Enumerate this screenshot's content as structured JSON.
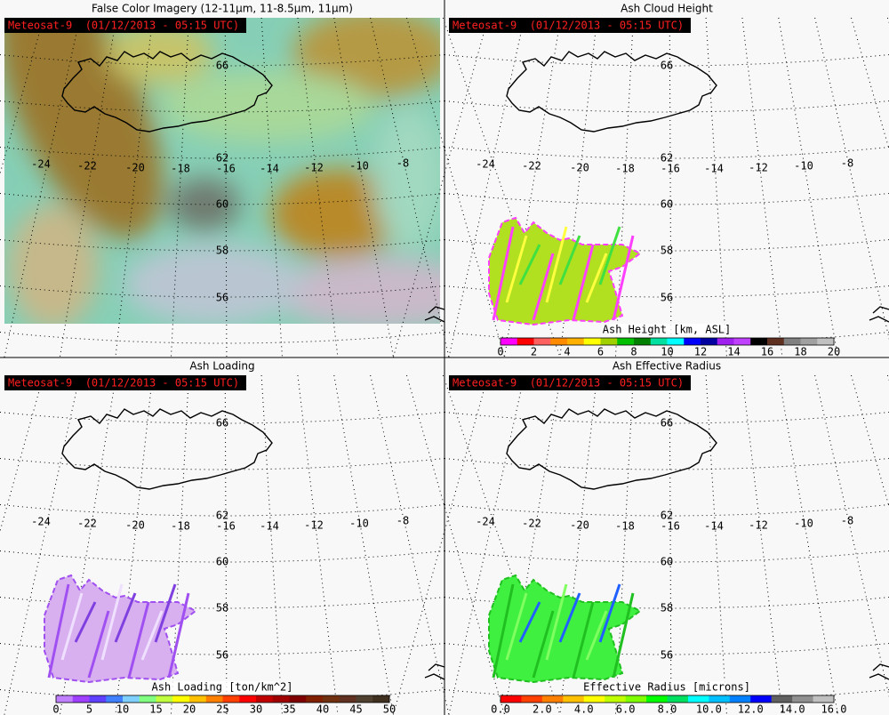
{
  "panels": [
    {
      "title": "False Color Imagery (12-11μm, 11-8.5μm, 11μm)",
      "badge": "Meteosat-9  (01/12/2013 - 05:15 UTC)",
      "lat_labels": [
        "66",
        "62",
        "60",
        "58",
        "56"
      ],
      "lon_labels": [
        "-24",
        "-22",
        "-20",
        "-18",
        "-16",
        "-14",
        "-12",
        "-10",
        "-8"
      ]
    },
    {
      "title": "Ash Cloud Height",
      "badge": "Meteosat-9  (01/12/2013 - 05:15 UTC)",
      "lat_labels": [
        "66",
        "62",
        "60",
        "58",
        "56"
      ],
      "lon_labels": [
        "-24",
        "-22",
        "-20",
        "-18",
        "-16",
        "-14",
        "-12",
        "-10",
        "-8"
      ],
      "colorbar": {
        "label": "Ash Height [km, ASL]",
        "ticks": [
          "0",
          "2",
          "4",
          "6",
          "8",
          "10",
          "12",
          "14",
          "16",
          "18",
          "20"
        ]
      }
    },
    {
      "title": "Ash Loading",
      "badge": "Meteosat-9  (01/12/2013 - 05:15 UTC)",
      "lat_labels": [
        "66",
        "62",
        "60",
        "58",
        "56"
      ],
      "lon_labels": [
        "-24",
        "-22",
        "-20",
        "-18",
        "-16",
        "-14",
        "-12",
        "-10",
        "-8"
      ],
      "colorbar": {
        "label": "Ash Loading [ton/km^2]",
        "ticks": [
          "0",
          "5",
          "10",
          "15",
          "20",
          "25",
          "30",
          "35",
          "40",
          "45",
          "50"
        ]
      }
    },
    {
      "title": "Ash Effective Radius",
      "badge": "Meteosat-9  (01/12/2013 - 05:15 UTC)",
      "lat_labels": [
        "66",
        "62",
        "60",
        "58",
        "56"
      ],
      "lon_labels": [
        "-24",
        "-22",
        "-20",
        "-18",
        "-16",
        "-14",
        "-12",
        "-10",
        "-8"
      ],
      "colorbar": {
        "label": "Effective Radius [microns]",
        "ticks": [
          "0.0",
          "2.0",
          "4.0",
          "6.0",
          "8.0",
          "10.0",
          "12.0",
          "14.0",
          "16.0"
        ]
      }
    }
  ]
}
